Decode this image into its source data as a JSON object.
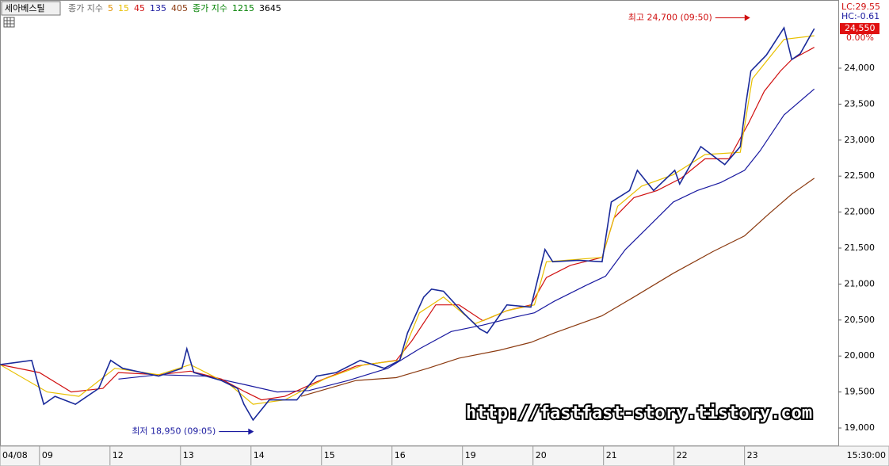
{
  "chart_data": {
    "type": "line",
    "title": "세아베스틸",
    "indicator_label": "종가 지수",
    "first_period": {
      "name": "5",
      "color": "#e09000"
    },
    "series": [
      {
        "name": "15",
        "color": "#e8c000",
        "x": [
          0.44,
          1.11,
          1.56,
          2.07,
          2.69,
          3.14,
          3.7,
          4.03,
          4.48,
          5.04,
          5.61,
          6.11,
          6.39,
          6.73,
          7.18,
          7.63,
          8.02,
          8.19,
          8.98,
          9.2,
          9.54,
          9.99,
          10.44,
          10.94,
          11.11,
          11.56,
          11.99
        ],
        "values": [
          19880,
          19500,
          19440,
          19830,
          19740,
          19880,
          19600,
          19330,
          19390,
          19680,
          19880,
          19940,
          20600,
          20820,
          20450,
          20630,
          20710,
          21310,
          21370,
          22080,
          22360,
          22520,
          22800,
          22830,
          23850,
          24400,
          24450
        ]
      },
      {
        "name": "45",
        "color": "#d01010",
        "x": [
          0.44,
          1.0,
          1.45,
          1.9,
          2.12,
          2.69,
          3.14,
          3.58,
          3.92,
          4.15,
          4.48,
          4.93,
          5.49,
          6.06,
          6.28,
          6.62,
          6.95,
          7.29,
          7.63,
          7.97,
          8.19,
          8.53,
          8.98,
          9.15,
          9.43,
          9.76,
          10.1,
          10.44,
          10.78,
          11.06,
          11.28,
          11.51,
          11.67,
          11.99
        ],
        "values": [
          19880,
          19770,
          19500,
          19550,
          19770,
          19740,
          19790,
          19680,
          19500,
          19390,
          19440,
          19640,
          19860,
          19940,
          20210,
          20710,
          20710,
          20490,
          20630,
          20710,
          21090,
          21260,
          21370,
          21920,
          22200,
          22300,
          22470,
          22740,
          22740,
          23240,
          23680,
          23960,
          24120,
          24290
        ]
      },
      {
        "name": "135",
        "color": "#1a1aa0",
        "x": [
          2.12,
          2.69,
          3.36,
          3.92,
          4.37,
          4.82,
          5.38,
          5.94,
          6.39,
          6.84,
          7.29,
          7.74,
          8.02,
          8.3,
          8.75,
          9.03,
          9.31,
          9.65,
          9.99,
          10.33,
          10.66,
          11.0,
          11.22,
          11.56,
          11.99
        ],
        "values": [
          19680,
          19740,
          19720,
          19600,
          19500,
          19520,
          19660,
          19830,
          20100,
          20340,
          20430,
          20540,
          20600,
          20760,
          20980,
          21110,
          21480,
          21810,
          22140,
          22300,
          22410,
          22580,
          22850,
          23350,
          23710
        ]
      },
      {
        "name": "405",
        "color": "#8b3a10",
        "x": [
          4.71,
          5.49,
          6.06,
          6.51,
          6.95,
          7.52,
          7.97,
          8.3,
          8.98,
          9.43,
          9.99,
          10.55,
          11.0,
          11.34,
          11.67,
          11.99
        ],
        "values": [
          19440,
          19660,
          19700,
          19830,
          19970,
          20080,
          20190,
          20320,
          20560,
          20820,
          21150,
          21450,
          21670,
          21970,
          22250,
          22470
        ]
      }
    ],
    "indicator2_label": "종가 지수",
    "indicator2_color": "#008000",
    "extra_periods": [
      {
        "name": "1215",
        "color": "#008000"
      },
      {
        "name": "3645",
        "color": "#000000"
      }
    ],
    "price": {
      "color": "#1a2a9a",
      "x": [
        0.44,
        0.89,
        1.06,
        1.22,
        1.51,
        1.84,
        2.01,
        2.18,
        2.69,
        3.02,
        3.09,
        3.19,
        3.58,
        3.81,
        3.9,
        4.03,
        4.26,
        4.65,
        4.93,
        5.21,
        5.55,
        5.89,
        6.11,
        6.22,
        6.45,
        6.56,
        6.73,
        7.01,
        7.24,
        7.35,
        7.63,
        7.97,
        8.17,
        8.28,
        8.64,
        8.98,
        9.11,
        9.37,
        9.48,
        9.71,
        10.01,
        10.08,
        10.38,
        10.72,
        10.94,
        11.02,
        11.09,
        11.31,
        11.56,
        11.67,
        11.79,
        11.99
      ],
      "values": [
        19880,
        19940,
        19330,
        19440,
        19330,
        19550,
        19940,
        19830,
        19720,
        19830,
        20100,
        19770,
        19660,
        19550,
        19330,
        19110,
        19390,
        19390,
        19720,
        19770,
        19940,
        19830,
        19940,
        20320,
        20820,
        20930,
        20900,
        20600,
        20380,
        20320,
        20710,
        20680,
        21480,
        21310,
        21330,
        21310,
        22140,
        22300,
        22580,
        22300,
        22580,
        22390,
        22910,
        22660,
        22910,
        23510,
        23960,
        24180,
        24560,
        24120,
        24200,
        24550
      ]
    },
    "annotations": [
      {
        "text": "최고 24,700 (09:50)",
        "x": 11.08,
        "value": 24700,
        "color": "#d01010"
      },
      {
        "text": "최저 18,950 (09:05)",
        "x": 4.04,
        "value": 18950,
        "color": "#1a1aa0"
      }
    ],
    "lc": "LC:29.55",
    "hc": "HC:-0.61",
    "last_price": {
      "value": 24550,
      "label": "24,550"
    },
    "change": "0.00%",
    "time_label": "15:30:00",
    "watermark": "http://fastfast-story.tistory.com",
    "xlim": [
      0.44,
      12.33
    ],
    "xticks": [
      {
        "value": 0.44,
        "label": "04/08"
      },
      {
        "value": 1,
        "label": "09"
      },
      {
        "value": 2,
        "label": "12"
      },
      {
        "value": 3,
        "label": "13"
      },
      {
        "value": 4,
        "label": "14"
      },
      {
        "value": 5,
        "label": "15"
      },
      {
        "value": 6,
        "label": "16"
      },
      {
        "value": 7,
        "label": "19"
      },
      {
        "value": 8,
        "label": "20"
      },
      {
        "value": 9,
        "label": "21"
      },
      {
        "value": 10,
        "label": "22"
      },
      {
        "value": 11,
        "label": "23"
      }
    ],
    "ylim": [
      18758,
      24947
    ],
    "yticks": [
      {
        "value": 19000,
        "label": "19,000"
      },
      {
        "value": 19500,
        "label": "19,500"
      },
      {
        "value": 20000,
        "label": "20,000"
      },
      {
        "value": 20500,
        "label": "20,500"
      },
      {
        "value": 21000,
        "label": "21,000"
      },
      {
        "value": 21500,
        "label": "21,500"
      },
      {
        "value": 22000,
        "label": "22,000"
      },
      {
        "value": 22500,
        "label": "22,500"
      },
      {
        "value": 23000,
        "label": "23,000"
      },
      {
        "value": 23500,
        "label": "23,500"
      },
      {
        "value": 24000,
        "label": "24,000"
      }
    ]
  }
}
